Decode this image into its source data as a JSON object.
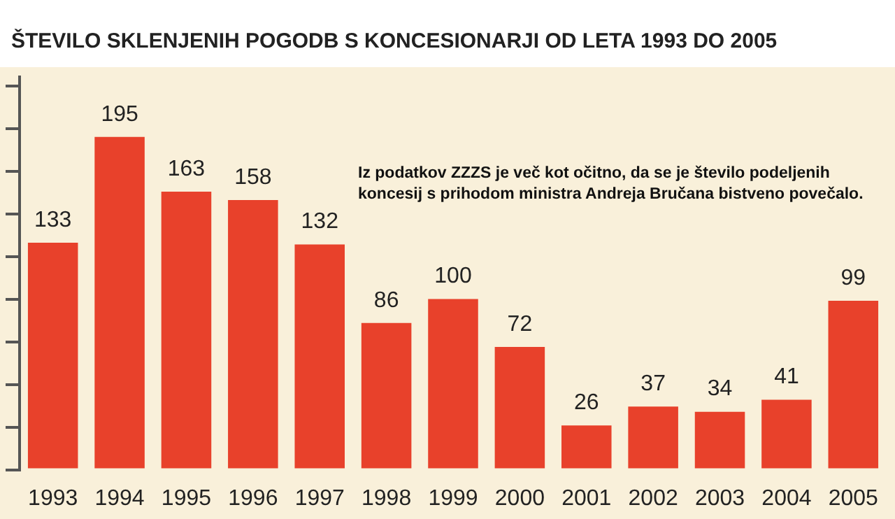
{
  "chart_data": {
    "type": "bar",
    "title": "ŠTEVILO SKLENJENIH POGODB S KONCESIONARJI OD LETA 1993 DO 2005",
    "categories": [
      "1993",
      "1994",
      "1995",
      "1996",
      "1997",
      "1998",
      "1999",
      "2000",
      "2001",
      "2002",
      "2003",
      "2004",
      "2005"
    ],
    "values": [
      133,
      195,
      163,
      158,
      132,
      86,
      100,
      72,
      26,
      37,
      34,
      41,
      99
    ],
    "color": "#e8412b",
    "ylim": [
      0,
      230
    ],
    "yticks": [
      {
        "value": 0,
        "label": null
      },
      {
        "value": 25,
        "label": null
      },
      {
        "value": 50,
        "label": null
      },
      {
        "value": 75,
        "label": null
      },
      {
        "value": 100,
        "label": null
      },
      {
        "value": 125,
        "label": null
      },
      {
        "value": 150,
        "label": null
      },
      {
        "value": 175,
        "label": null
      },
      {
        "value": 200,
        "label": null
      },
      {
        "value": 225,
        "label": null
      }
    ],
    "tick_labels": "x",
    "data_labels": true,
    "grid": false,
    "legend": false,
    "annotations": [
      "Iz podatkov ZZZS je več kot očitno, da se je število podeljenih koncesij s prihodom ministra Andreja Bručana bistveno povečalo."
    ]
  }
}
